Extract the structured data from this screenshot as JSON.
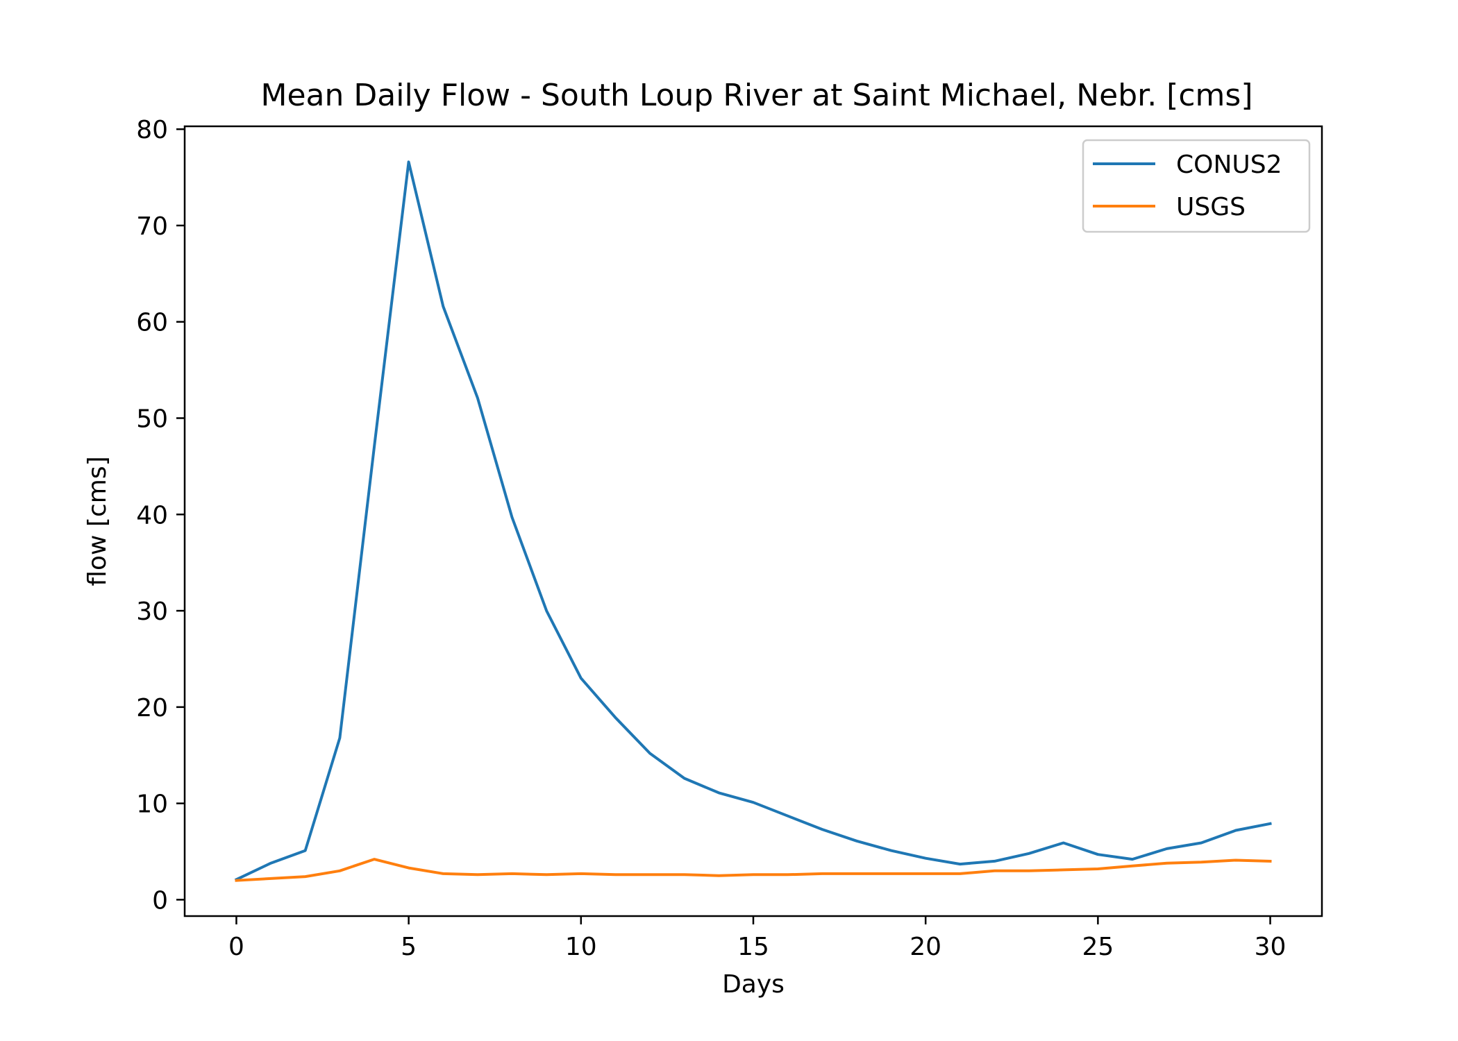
{
  "chart_data": {
    "type": "line",
    "title": "Mean Daily Flow - South Loup River at Saint Michael, Nebr. [cms]",
    "xlabel": "Days",
    "ylabel": "flow [cms]",
    "xlim": [
      -1.5,
      31.5
    ],
    "ylim": [
      -1.7,
      80.3
    ],
    "xticks": [
      0,
      5,
      10,
      15,
      20,
      25,
      30
    ],
    "yticks": [
      0,
      10,
      20,
      30,
      40,
      50,
      60,
      70,
      80
    ],
    "grid": false,
    "legend_position": "upper-right",
    "x": [
      0,
      1,
      2,
      3,
      4,
      5,
      6,
      7,
      8,
      9,
      10,
      11,
      12,
      13,
      14,
      15,
      16,
      17,
      18,
      19,
      20,
      21,
      22,
      23,
      24,
      25,
      26,
      27,
      28,
      29,
      30
    ],
    "series": [
      {
        "name": "CONUS2",
        "color": "#1f77b4",
        "values": [
          2.1,
          3.8,
          5.1,
          16.8,
          47.0,
          76.6,
          61.6,
          52.1,
          39.7,
          30.0,
          23.0,
          18.9,
          15.2,
          12.6,
          11.1,
          10.1,
          8.7,
          7.3,
          6.1,
          5.1,
          4.3,
          3.7,
          4.0,
          4.8,
          5.9,
          4.7,
          4.2,
          5.3,
          5.9,
          7.2,
          7.9
        ]
      },
      {
        "name": "USGS",
        "color": "#ff7f0e",
        "values": [
          2.0,
          2.2,
          2.4,
          3.0,
          4.2,
          3.3,
          2.7,
          2.6,
          2.7,
          2.6,
          2.7,
          2.6,
          2.6,
          2.6,
          2.5,
          2.6,
          2.6,
          2.7,
          2.7,
          2.7,
          2.7,
          2.7,
          3.0,
          3.0,
          3.1,
          3.2,
          3.5,
          3.8,
          3.9,
          4.1,
          4.0
        ]
      }
    ]
  }
}
